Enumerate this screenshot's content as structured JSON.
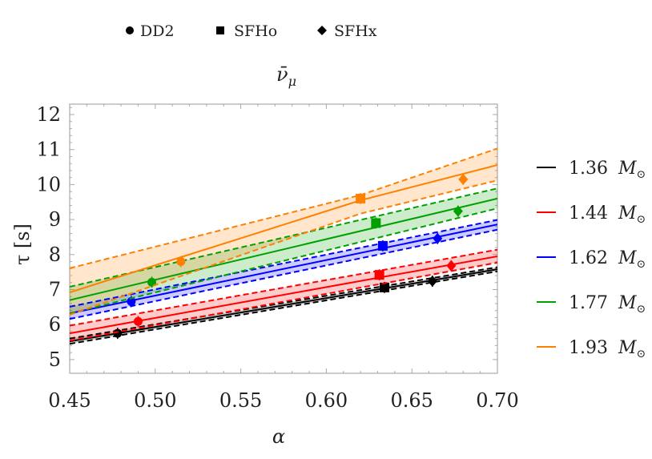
{
  "chart_data": {
    "type": "line",
    "title": "ν̄μ",
    "title_base": "ν̄",
    "title_sub": "μ",
    "xlabel": "α",
    "ylabel": "τ [s]",
    "xlim": [
      0.45,
      0.7
    ],
    "ylim": [
      4.6,
      12.3
    ],
    "xticks": [
      "0.45",
      "0.50",
      "0.55",
      "0.60",
      "0.65",
      "0.70"
    ],
    "yticks": [
      "5",
      "6",
      "7",
      "8",
      "9",
      "10",
      "11",
      "12"
    ],
    "grid": false,
    "marker_legend": {
      "placement": "top",
      "entries": [
        {
          "label": "DD2",
          "marker": "circle"
        },
        {
          "label": "SFHo",
          "marker": "square"
        },
        {
          "label": "SFHx",
          "marker": "diamond"
        }
      ]
    },
    "legend_placement": "right",
    "series": [
      {
        "name": "1.36 M⊙",
        "mass": "1.36",
        "unit": "M",
        "unit_sub": "⊙",
        "color": "#000000",
        "x": [
          0.45,
          0.7
        ],
        "center": [
          5.52,
          7.58
        ],
        "upper": [
          5.6,
          7.64
        ],
        "lower": [
          5.45,
          7.52
        ],
        "points": [
          {
            "eos": "DD2",
            "x": 0.478,
            "y": 5.75
          },
          {
            "eos": "SFHo",
            "x": 0.634,
            "y": 7.06
          },
          {
            "eos": "SFHx",
            "x": 0.662,
            "y": 7.24
          }
        ]
      },
      {
        "name": "1.44 M⊙",
        "mass": "1.44",
        "unit": "M",
        "unit_sub": "⊙",
        "color": "#ff0000",
        "x": [
          0.45,
          0.7
        ],
        "center": [
          5.75,
          7.95
        ],
        "upper": [
          5.97,
          8.14
        ],
        "lower": [
          5.54,
          7.77
        ],
        "points": [
          {
            "eos": "DD2",
            "x": 0.49,
            "y": 6.09
          },
          {
            "eos": "SFHo",
            "x": 0.631,
            "y": 7.42
          },
          {
            "eos": "SFHx",
            "x": 0.673,
            "y": 7.68
          }
        ]
      },
      {
        "name": "1.62 M⊙",
        "mass": "1.62",
        "unit": "M",
        "unit_sub": "⊙",
        "color": "#0000ff",
        "x": [
          0.45,
          0.7
        ],
        "center": [
          6.32,
          8.86
        ],
        "upper": [
          6.51,
          8.99
        ],
        "lower": [
          6.16,
          8.71
        ],
        "points": [
          {
            "eos": "DD2",
            "x": 0.486,
            "y": 6.66
          },
          {
            "eos": "SFHo",
            "x": 0.633,
            "y": 8.25
          },
          {
            "eos": "SFHx",
            "x": 0.665,
            "y": 8.46
          }
        ]
      },
      {
        "name": "1.77 M⊙",
        "mass": "1.77",
        "unit": "M",
        "unit_sub": "⊙",
        "color": "#00a000",
        "x": [
          0.45,
          0.7
        ],
        "center": [
          6.7,
          9.6
        ],
        "upper": [
          7.08,
          9.89
        ],
        "lower": [
          6.32,
          9.32
        ],
        "points": [
          {
            "eos": "DD2",
            "x": 0.498,
            "y": 7.21
          },
          {
            "eos": "SFHo",
            "x": 0.629,
            "y": 8.9
          },
          {
            "eos": "SFHx",
            "x": 0.677,
            "y": 9.24
          }
        ]
      },
      {
        "name": "1.93 M⊙",
        "mass": "1.93",
        "unit": "M",
        "unit_sub": "⊙",
        "color": "#ff8000",
        "x": [
          0.45,
          0.62,
          0.7
        ],
        "center": [
          6.92,
          9.55,
          10.56
        ],
        "upper": [
          7.61,
          9.7,
          11.03
        ],
        "lower": [
          6.28,
          9.17,
          10.12
        ],
        "points": [
          {
            "eos": "DD2",
            "x": 0.515,
            "y": 7.8
          },
          {
            "eos": "SFHo",
            "x": 0.62,
            "y": 9.6
          },
          {
            "eos": "SFHx",
            "x": 0.68,
            "y": 10.15
          }
        ]
      }
    ]
  }
}
